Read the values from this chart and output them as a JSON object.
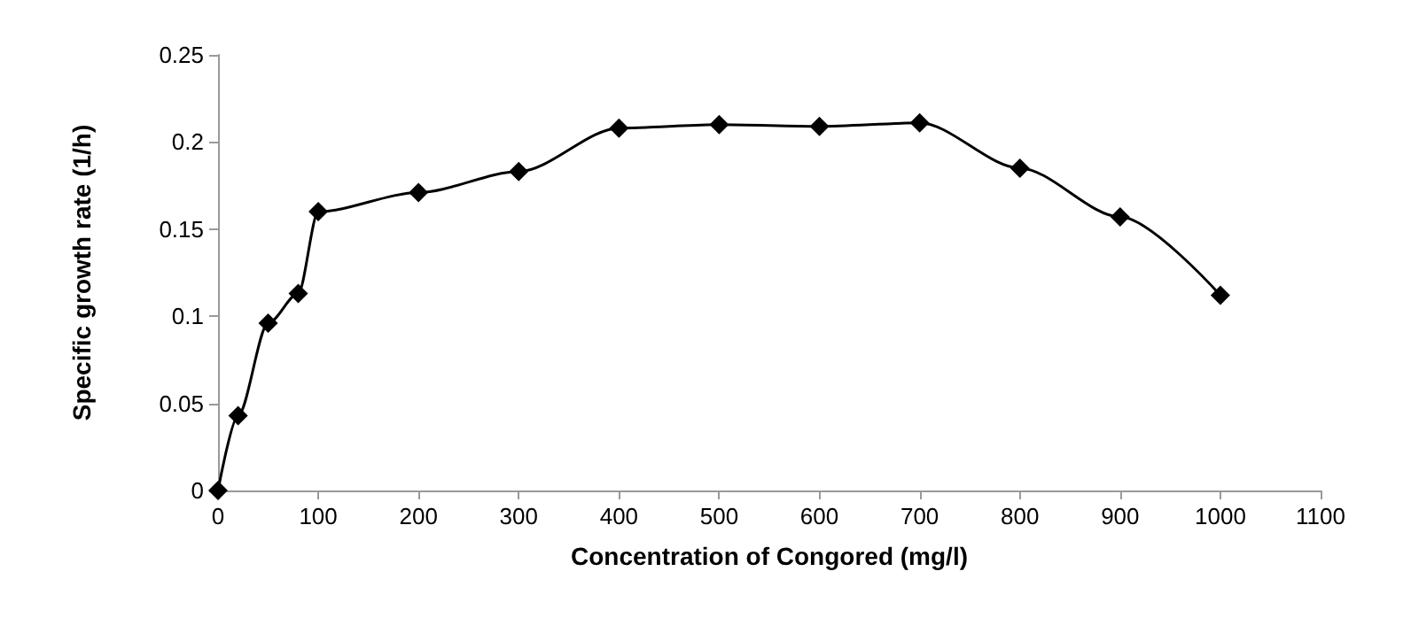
{
  "chart_data": {
    "type": "line",
    "xlabel": "Concentration of Congored (mg/l)",
    "ylabel": "Specific growth rate (1/h)",
    "x": [
      0,
      20,
      50,
      80,
      100,
      200,
      300,
      400,
      500,
      600,
      700,
      800,
      900,
      1000
    ],
    "series": [
      {
        "color": "#000000",
        "values": [
          0,
          0.043,
          0.096,
          0.113,
          0.16,
          0.171,
          0.183,
          0.208,
          0.21,
          0.209,
          0.211,
          0.185,
          0.157,
          0.112
        ]
      }
    ],
    "xlim": [
      0,
      1100
    ],
    "xticks": [
      0,
      100,
      200,
      300,
      400,
      500,
      600,
      700,
      800,
      900,
      1000,
      1100
    ],
    "ylim": [
      0,
      0.25
    ],
    "yticks": [
      0,
      0.05,
      0.1,
      0.15,
      0.2,
      0.25
    ],
    "grid": false,
    "marker": "diamond",
    "line_style": "solid"
  }
}
